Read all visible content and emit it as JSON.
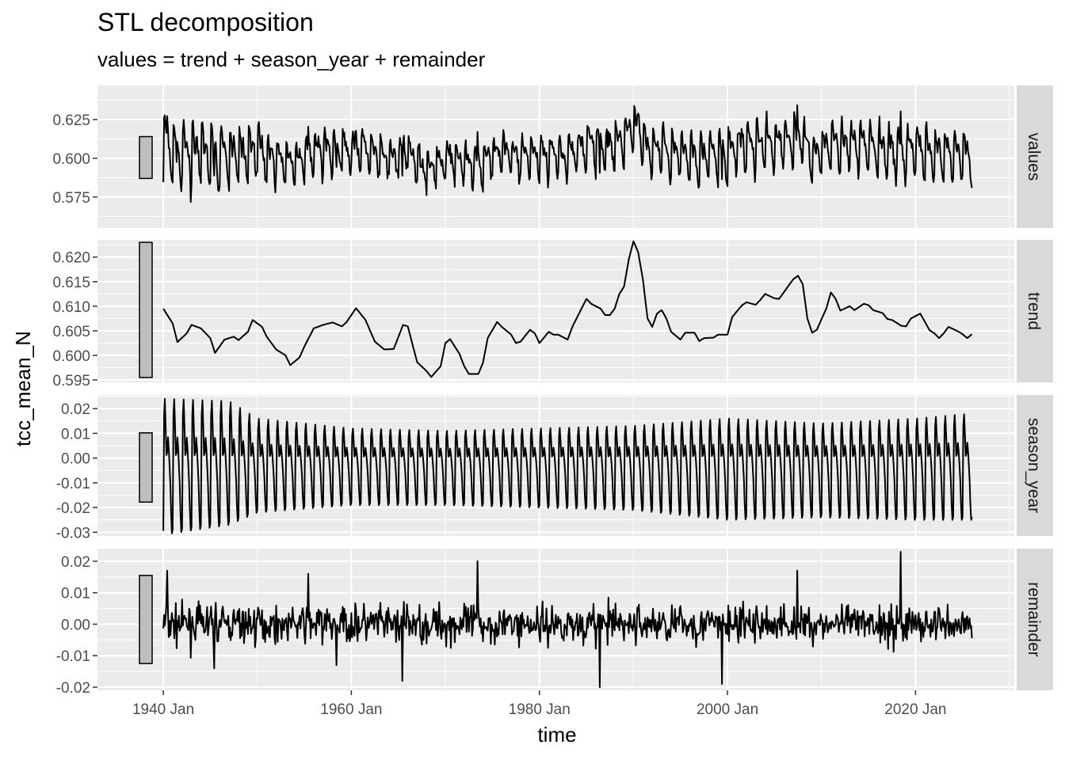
{
  "chart_data": {
    "type": "line",
    "title": "STL decomposition",
    "subtitle": "values = trend + season_year + remainder",
    "xlabel": "time",
    "ylabel": "tcc_mean_N",
    "x_range": [
      "1940 Jan",
      "2026 Jan"
    ],
    "x_ticks": [
      "1940 Jan",
      "1960 Jan",
      "1980 Jan",
      "2000 Jan",
      "2020 Jan"
    ],
    "colors": {
      "panel_bg": "#EBEBEB",
      "strip_bg": "#D9D9D9",
      "line": "#000000",
      "scale_bar": "#BEBEBE",
      "grid": "#FFFFFF"
    },
    "panels": [
      {
        "name": "values",
        "ylim": [
          0.555,
          0.647
        ],
        "y_ticks": [
          "0.575",
          "0.600",
          "0.625"
        ],
        "scale_bar": [
          0.587,
          0.614
        ],
        "overall_mean": 0.606,
        "annual_points": [
          [
            "1940",
            0.58
          ],
          [
            "1941",
            0.603
          ],
          [
            "1942",
            0.596
          ],
          [
            "1943",
            0.608
          ],
          [
            "1944",
            0.604
          ],
          [
            "1945",
            0.611
          ],
          [
            "1946",
            0.603
          ],
          [
            "1947",
            0.608
          ],
          [
            "1948",
            0.607
          ],
          [
            "1949",
            0.602
          ],
          [
            "1950",
            0.605
          ],
          [
            "1951",
            0.606
          ],
          [
            "1952",
            0.607
          ],
          [
            "1953",
            0.605
          ],
          [
            "1954",
            0.608
          ],
          [
            "1955",
            0.606
          ],
          [
            "1956",
            0.6
          ],
          [
            "1957",
            0.603
          ],
          [
            "1958",
            0.606
          ],
          [
            "1959",
            0.599
          ],
          [
            "1960",
            0.598
          ],
          [
            "1961",
            0.601
          ],
          [
            "1962",
            0.604
          ],
          [
            "1963",
            0.598
          ],
          [
            "1964",
            0.603
          ],
          [
            "1965",
            0.601
          ],
          [
            "1966",
            0.606
          ],
          [
            "1967",
            0.604
          ],
          [
            "1968",
            0.607
          ],
          [
            "1969",
            0.611
          ],
          [
            "1970",
            0.609
          ],
          [
            "1971",
            0.612
          ],
          [
            "1972",
            0.616
          ],
          [
            "1973",
            0.621
          ],
          [
            "1974",
            0.608
          ],
          [
            "1975",
            0.607
          ],
          [
            "1976",
            0.606
          ],
          [
            "1977",
            0.604
          ],
          [
            "1978",
            0.605
          ],
          [
            "1979",
            0.606
          ],
          [
            "1980",
            0.61
          ],
          [
            "1981",
            0.611
          ],
          [
            "1982",
            0.612
          ],
          [
            "1983",
            0.613
          ],
          [
            "1984",
            0.607
          ],
          [
            "1985",
            0.606
          ],
          [
            "1986",
            0.609
          ],
          [
            "1987",
            0.608
          ],
          [
            "1988",
            0.608
          ],
          [
            "1989",
            0.607
          ],
          [
            "1990",
            0.606
          ],
          [
            "1991",
            0.605
          ],
          [
            "1992",
            0.606
          ],
          [
            "1993",
            0.605
          ],
          [
            "1994",
            0.604
          ],
          [
            "1995",
            0.606
          ],
          [
            "1996",
            0.604
          ],
          [
            "1997",
            0.606
          ],
          [
            "1998",
            0.603
          ],
          [
            "1999",
            0.601
          ],
          [
            "2000",
            0.6
          ],
          [
            "2001",
            0.609
          ],
          [
            "2002",
            0.611
          ],
          [
            "2003",
            0.612
          ],
          [
            "2004",
            0.613
          ],
          [
            "2005",
            0.614
          ],
          [
            "2006",
            0.612
          ],
          [
            "2007",
            0.611
          ],
          [
            "2008",
            0.611
          ],
          [
            "2009",
            0.61
          ],
          [
            "2010",
            0.613
          ],
          [
            "2011",
            0.61
          ],
          [
            "2012",
            0.614
          ],
          [
            "2013",
            0.613
          ],
          [
            "2014",
            0.612
          ],
          [
            "2015",
            0.611
          ],
          [
            "2016",
            0.612
          ],
          [
            "2017",
            0.608
          ],
          [
            "2018",
            0.611
          ],
          [
            "2019",
            0.61
          ],
          [
            "2020",
            0.609
          ],
          [
            "2021",
            0.602
          ],
          [
            "2022",
            0.602
          ],
          [
            "2023",
            0.601
          ],
          [
            "2024",
            0.603
          ],
          [
            "2025",
            0.6
          ],
          [
            "2026",
            0.595
          ]
        ]
      },
      {
        "name": "trend",
        "ylim": [
          0.5945,
          0.6235
        ],
        "y_ticks": [
          "0.595",
          "0.600",
          "0.605",
          "0.610",
          "0.615",
          "0.620"
        ],
        "scale_bar": [
          0.5955,
          0.623
        ],
        "points": [
          [
            "1940.0",
            0.6095
          ],
          [
            "1941.0",
            0.6065
          ],
          [
            "1941.5",
            0.6027
          ],
          [
            "1942.5",
            0.6045
          ],
          [
            "1943.0",
            0.6062
          ],
          [
            "1944.0",
            0.6055
          ],
          [
            "1945.0",
            0.6035
          ],
          [
            "1945.5",
            0.6005
          ],
          [
            "1946.5",
            0.6032
          ],
          [
            "1947.5",
            0.6038
          ],
          [
            "1948.0",
            0.6031
          ],
          [
            "1949.0",
            0.6048
          ],
          [
            "1949.5",
            0.6072
          ],
          [
            "1950.5",
            0.6058
          ],
          [
            "1951.0",
            0.6038
          ],
          [
            "1952.0",
            0.6012
          ],
          [
            "1953.0",
            0.6
          ],
          [
            "1953.5",
            0.598
          ],
          [
            "1954.5",
            0.5996
          ],
          [
            "1955.0",
            0.6018
          ],
          [
            "1956.0",
            0.6055
          ],
          [
            "1957.0",
            0.6062
          ],
          [
            "1958.0",
            0.6067
          ],
          [
            "1959.0",
            0.6059
          ],
          [
            "1959.5",
            0.6068
          ],
          [
            "1960.5",
            0.6096
          ],
          [
            "1961.5",
            0.6072
          ],
          [
            "1962.5",
            0.6028
          ],
          [
            "1963.5",
            0.6012
          ],
          [
            "1964.5",
            0.6013
          ],
          [
            "1965.5",
            0.6062
          ],
          [
            "1966.0",
            0.6059
          ],
          [
            "1967.0",
            0.5986
          ],
          [
            "1968.0",
            0.5968
          ],
          [
            "1968.5",
            0.5956
          ],
          [
            "1969.5",
            0.5978
          ],
          [
            "1970.0",
            0.6025
          ],
          [
            "1970.5",
            0.6033
          ],
          [
            "1971.5",
            0.6003
          ],
          [
            "1972.0",
            0.5978
          ],
          [
            "1972.5",
            0.5962
          ],
          [
            "1973.5",
            0.5962
          ],
          [
            "1974.0",
            0.5985
          ],
          [
            "1974.5",
            0.6035
          ],
          [
            "1975.5",
            0.6068
          ],
          [
            "1976.0",
            0.6058
          ],
          [
            "1977.0",
            0.6042
          ],
          [
            "1977.5",
            0.6025
          ],
          [
            "1978.0",
            0.6028
          ],
          [
            "1979.0",
            0.6052
          ],
          [
            "1979.5",
            0.6045
          ],
          [
            "1980.0",
            0.6025
          ],
          [
            "1981.0",
            0.6048
          ],
          [
            "1981.5",
            0.6042
          ],
          [
            "1982.0",
            0.6042
          ],
          [
            "1983.0",
            0.6032
          ],
          [
            "1983.5",
            0.6058
          ],
          [
            "1984.5",
            0.6096
          ],
          [
            "1985.0",
            0.6115
          ],
          [
            "1985.5",
            0.6105
          ],
          [
            "1986.5",
            0.6095
          ],
          [
            "1987.0",
            0.6082
          ],
          [
            "1987.5",
            0.6082
          ],
          [
            "1988.0",
            0.6095
          ],
          [
            "1988.5",
            0.6125
          ],
          [
            "1989.0",
            0.614
          ],
          [
            "1989.5",
            0.6195
          ],
          [
            "1990.0",
            0.6232
          ],
          [
            "1990.5",
            0.621
          ],
          [
            "1991.0",
            0.6155
          ],
          [
            "1991.5",
            0.6075
          ],
          [
            "1992.0",
            0.6058
          ],
          [
            "1992.5",
            0.6085
          ],
          [
            "1993.0",
            0.6092
          ],
          [
            "1993.5",
            0.6075
          ],
          [
            "1994.0",
            0.6048
          ],
          [
            "1995.0",
            0.6032
          ],
          [
            "1995.5",
            0.6046
          ],
          [
            "1996.5",
            0.6046
          ],
          [
            "1997.0",
            0.6029
          ],
          [
            "1997.5",
            0.6035
          ],
          [
            "1998.5",
            0.6036
          ],
          [
            "1999.0",
            0.6042
          ],
          [
            "2000.0",
            0.6042
          ],
          [
            "2000.5",
            0.6078
          ],
          [
            "2001.5",
            0.6101
          ],
          [
            "2002.0",
            0.6108
          ],
          [
            "2003.0",
            0.6103
          ],
          [
            "2003.5",
            0.6113
          ],
          [
            "2004.0",
            0.6125
          ],
          [
            "2005.0",
            0.6116
          ],
          [
            "2005.5",
            0.6115
          ],
          [
            "2006.5",
            0.6142
          ],
          [
            "2007.0",
            0.6155
          ],
          [
            "2007.5",
            0.6162
          ],
          [
            "2008.0",
            0.6145
          ],
          [
            "2008.5",
            0.6075
          ],
          [
            "2009.0",
            0.6046
          ],
          [
            "2009.5",
            0.6052
          ],
          [
            "2010.5",
            0.6095
          ],
          [
            "2011.0",
            0.6128
          ],
          [
            "2011.5",
            0.6115
          ],
          [
            "2012.0",
            0.6091
          ],
          [
            "2013.0",
            0.61
          ],
          [
            "2013.5",
            0.6092
          ],
          [
            "2014.5",
            0.6105
          ],
          [
            "2015.0",
            0.6102
          ],
          [
            "2015.5",
            0.6092
          ],
          [
            "2016.5",
            0.6086
          ],
          [
            "2017.0",
            0.6074
          ],
          [
            "2017.5",
            0.6072
          ],
          [
            "2018.5",
            0.606
          ],
          [
            "2019.0",
            0.6059
          ],
          [
            "2019.5",
            0.6075
          ],
          [
            "2020.5",
            0.6085
          ],
          [
            "2021.0",
            0.6068
          ],
          [
            "2021.5",
            0.6051
          ],
          [
            "2022.0",
            0.6045
          ],
          [
            "2022.5",
            0.6035
          ],
          [
            "2023.0",
            0.6045
          ],
          [
            "2023.5",
            0.6058
          ],
          [
            "2024.5",
            0.6049
          ],
          [
            "2025.0",
            0.6043
          ],
          [
            "2025.5",
            0.6035
          ],
          [
            "2026.0",
            0.6043
          ]
        ],
        "note_points_are_decimal_years": true
      },
      {
        "name": "season_year",
        "ylim": [
          -0.0315,
          0.0255
        ],
        "y_ticks": [
          "-0.03",
          "-0.02",
          "-0.01",
          "0.00",
          "0.01",
          "0.02"
        ],
        "scale_bar": [
          -0.0178,
          0.0102
        ],
        "amplitude_by_year": [
          [
            "1940",
            0.024,
            -0.031
          ],
          [
            "1947",
            0.023,
            -0.027
          ],
          [
            "1950",
            0.016,
            -0.022
          ],
          [
            "1960",
            0.012,
            -0.019
          ],
          [
            "1970",
            0.011,
            -0.019
          ],
          [
            "1980",
            0.012,
            -0.02
          ],
          [
            "1990",
            0.013,
            -0.021
          ],
          [
            "2000",
            0.016,
            -0.025
          ],
          [
            "2010",
            0.014,
            -0.024
          ],
          [
            "2020",
            0.016,
            -0.025
          ],
          [
            "2026",
            0.018,
            -0.025
          ]
        ]
      },
      {
        "name": "remainder",
        "ylim": [
          -0.021,
          0.024
        ],
        "y_ticks": [
          "-0.02",
          "-0.01",
          "0.00",
          "0.01",
          "0.02"
        ],
        "scale_bar": [
          -0.0125,
          0.0155
        ],
        "extremes": [
          [
            "1940",
            0.017
          ],
          [
            "1945",
            -0.014
          ],
          [
            "1955",
            0.016
          ],
          [
            "1958",
            -0.013
          ],
          [
            "1965",
            -0.018
          ],
          [
            "1973",
            0.02
          ],
          [
            "1986",
            -0.02
          ],
          [
            "1999",
            -0.019
          ],
          [
            "2007",
            0.017
          ],
          [
            "2018",
            0.023
          ]
        ]
      }
    ]
  }
}
